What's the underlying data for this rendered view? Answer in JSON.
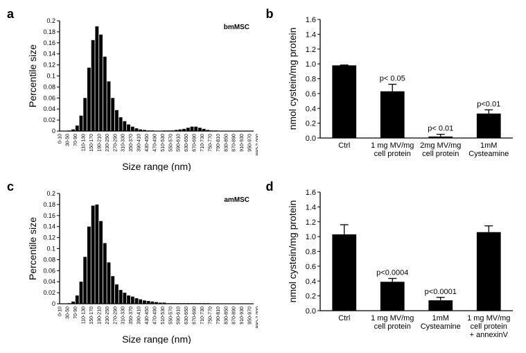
{
  "panels": {
    "a": {
      "label": "a",
      "chart": {
        "type": "histogram",
        "legend_label": "bmMSC",
        "x_label": "Size range (nm)",
        "y_label": "Percentile size",
        "bar_color": "#000000",
        "axis_color": "#000000",
        "text_color": "#000000",
        "label_fontsize": 14,
        "tick_fontsize": 7,
        "legend_fontsize": 10,
        "ylim": [
          0,
          0.2
        ],
        "ytick_step": 0.02,
        "categories": [
          "0-10",
          "",
          "30-50",
          "",
          "70-90",
          "",
          "110-130",
          "",
          "150-170",
          "",
          "190-210",
          "",
          "230-250",
          "",
          "270-290",
          "",
          "310-330",
          "",
          "350-370",
          "",
          "390-410",
          "",
          "430-450",
          "",
          "470-490",
          "",
          "510-530",
          "",
          "550-570",
          "",
          "590-610",
          "",
          "630-650",
          "",
          "670-690",
          "",
          "710-730",
          "",
          "750-770",
          "",
          "790-810",
          "",
          "830-850",
          "",
          "870-890",
          "",
          "910-930",
          "",
          "950-970",
          "",
          "990-2,000"
        ],
        "values": [
          0,
          0,
          0.001,
          0.003,
          0.01,
          0.028,
          0.06,
          0.115,
          0.165,
          0.19,
          0.175,
          0.135,
          0.09,
          0.06,
          0.038,
          0.025,
          0.018,
          0.012,
          0.008,
          0.005,
          0.003,
          0.002,
          0.001,
          0.001,
          0,
          0,
          0.001,
          0.001,
          0.001,
          0.002,
          0.003,
          0.004,
          0.006,
          0.008,
          0.008,
          0.006,
          0.004,
          0.002,
          0.001,
          0.001,
          0,
          0,
          0,
          0,
          0,
          0,
          0,
          0,
          0
        ]
      }
    },
    "b": {
      "label": "b",
      "chart": {
        "type": "bar",
        "y_label": "nmol cystein/mg protein",
        "bar_color": "#000000",
        "axis_color": "#000000",
        "text_color": "#000000",
        "label_fontsize": 14,
        "tick_fontsize": 11,
        "annotation_fontsize": 11,
        "ylim": [
          0,
          1.6
        ],
        "ytick_step": 0.2,
        "categories": [
          "Ctrl",
          "1 mg MV/mg\ncell protein",
          "2mg MV/mg\ncell protein",
          "1mM\nCysteamine"
        ],
        "values": [
          0.98,
          0.63,
          0.02,
          0.33
        ],
        "errors": [
          0.005,
          0.095,
          0.03,
          0.05
        ],
        "annotations": [
          "",
          "p< 0.05",
          "p< 0.01",
          "p<0.01"
        ],
        "bar_width": 0.5
      }
    },
    "c": {
      "label": "c",
      "chart": {
        "type": "histogram",
        "legend_label": "amMSC",
        "x_label": "Size range (nm)",
        "y_label": "Percentile size",
        "bar_color": "#000000",
        "axis_color": "#000000",
        "text_color": "#000000",
        "label_fontsize": 14,
        "tick_fontsize": 7,
        "legend_fontsize": 10,
        "ylim": [
          0,
          0.2
        ],
        "ytick_step": 0.02,
        "categories": [
          "0-10",
          "",
          "30-50",
          "",
          "70-90",
          "",
          "110-130",
          "",
          "150-170",
          "",
          "190-210",
          "",
          "230-250",
          "",
          "270-290",
          "",
          "310-330",
          "",
          "350-370",
          "",
          "390-410",
          "",
          "430-450",
          "",
          "470-490",
          "",
          "510-530",
          "",
          "550-570",
          "",
          "590-610",
          "",
          "630-650",
          "",
          "670-690",
          "",
          "710-730",
          "",
          "750-770",
          "",
          "790-810",
          "",
          "830-850",
          "",
          "870-890",
          "",
          "910-930",
          "",
          "950-970",
          "",
          "990-2,000"
        ],
        "values": [
          0,
          0,
          0.001,
          0.004,
          0.015,
          0.04,
          0.085,
          0.14,
          0.178,
          0.18,
          0.15,
          0.11,
          0.075,
          0.05,
          0.035,
          0.025,
          0.02,
          0.015,
          0.013,
          0.01,
          0.008,
          0.006,
          0.005,
          0.004,
          0.003,
          0.002,
          0.002,
          0.001,
          0.001,
          0.001,
          0.001,
          0.001,
          0.001,
          0.001,
          0.001,
          0.001,
          0.001,
          0.001,
          0,
          0,
          0,
          0,
          0,
          0,
          0,
          0,
          0,
          0,
          0
        ]
      }
    },
    "d": {
      "label": "d",
      "chart": {
        "type": "bar",
        "y_label": "nmol cystein/mg protein",
        "bar_color": "#000000",
        "axis_color": "#000000",
        "text_color": "#000000",
        "label_fontsize": 14,
        "tick_fontsize": 11,
        "annotation_fontsize": 11,
        "ylim": [
          0,
          1.6
        ],
        "ytick_step": 0.2,
        "categories": [
          "Ctrl",
          "1 mg MV/mg\ncell protein",
          "1mM\nCysteamine",
          "1 mg MV/mg\ncell protein\n+ annexinV"
        ],
        "values": [
          1.03,
          0.39,
          0.14,
          1.06
        ],
        "errors": [
          0.13,
          0.045,
          0.04,
          0.085
        ],
        "annotations": [
          "",
          "p<0.0004",
          "p<0.0001",
          ""
        ],
        "bar_width": 0.5
      }
    }
  }
}
